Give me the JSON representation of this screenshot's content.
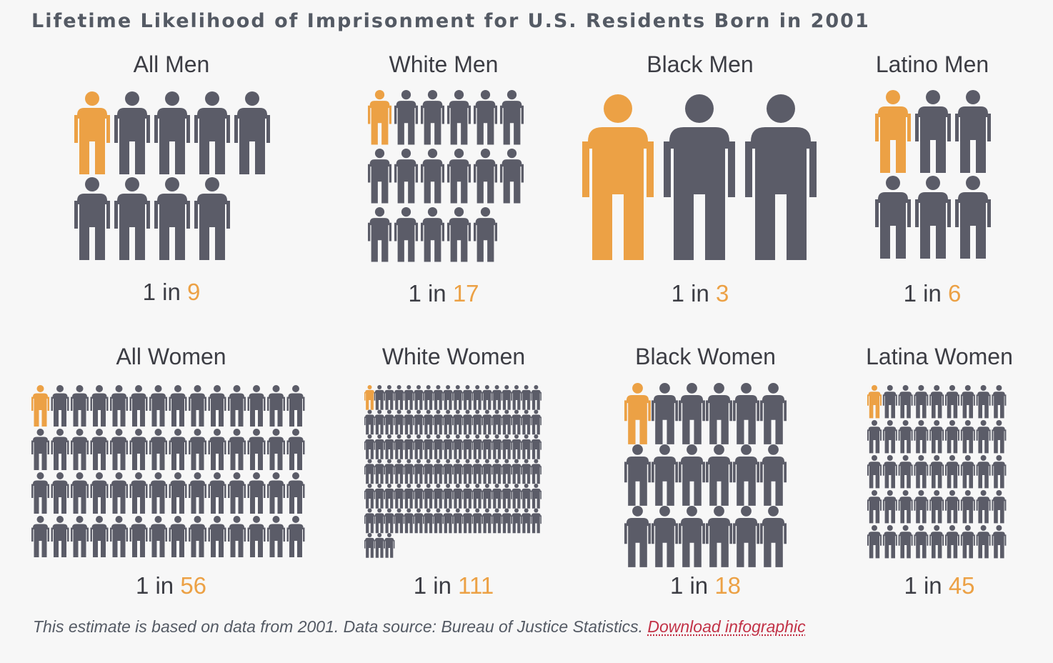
{
  "title": "Lifetime Likelihood of Imprisonment for U.S. Residents Born in 2001",
  "colors": {
    "highlight": "#eca145",
    "figure": "#5b5c68",
    "background": "#f7f7f7",
    "link": "#c23247"
  },
  "chart_data": {
    "type": "pictograph",
    "title": "Lifetime Likelihood of Imprisonment for U.S. Residents Born in 2001",
    "unit_label": "1 in",
    "groups": [
      {
        "label": "All Men",
        "one_in": 9
      },
      {
        "label": "White Men",
        "one_in": 17
      },
      {
        "label": "Black Men",
        "one_in": 3
      },
      {
        "label": "Latino Men",
        "one_in": 6
      },
      {
        "label": "All Women",
        "one_in": 56
      },
      {
        "label": "White Women",
        "one_in": 111
      },
      {
        "label": "Black Women",
        "one_in": 18
      },
      {
        "label": "Latina Women",
        "one_in": 45
      }
    ]
  },
  "footnote": {
    "text": "This estimate is based on data from 2001. Data source: Bureau of Justice Statistics. ",
    "link_label": "Download infographic"
  }
}
